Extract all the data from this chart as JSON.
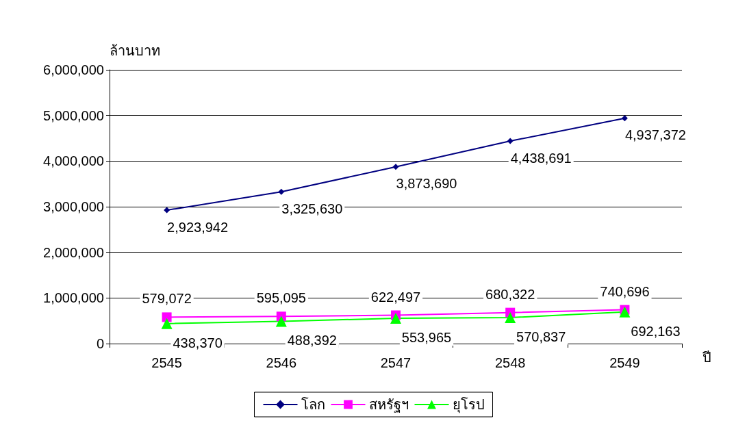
{
  "chart_data": {
    "type": "line",
    "ylabel": "ล้านบาท",
    "xlabel": "ปี",
    "categories": [
      "2545",
      "2546",
      "2547",
      "2548",
      "2549"
    ],
    "ylim": [
      0,
      6000000
    ],
    "yticks": [
      0,
      {
        "value": 1000000,
        "label": "1,000,000"
      },
      {
        "value": 2000000,
        "label": "2,000,000"
      },
      {
        "value": 3000000,
        "label": "3,000,000"
      },
      {
        "value": 4000000,
        "label": "4,000,000"
      },
      {
        "value": 5000000,
        "label": "5,000,000"
      },
      {
        "value": 6000000,
        "label": "6,000,000"
      }
    ],
    "grid": "y",
    "legend": "bottom",
    "series": [
      {
        "name": "โลก",
        "color": "#000080",
        "marker": "diamond",
        "values": [
          2923942,
          3325630,
          3873690,
          4438691,
          4937372
        ],
        "value_labels": [
          "2,923,942",
          "3,325,630",
          "3,873,690",
          "4,438,691",
          "4,937,372"
        ]
      },
      {
        "name": "สหรัฐฯ",
        "color": "#ff00ff",
        "marker": "square",
        "values": [
          579072,
          595095,
          622497,
          680322,
          740696
        ],
        "value_labels": [
          "579,072",
          "595,095",
          "622,497",
          "680,322",
          "740,696"
        ]
      },
      {
        "name": "ยุโรป",
        "color": "#00ff00",
        "marker": "triangle",
        "values": [
          438370,
          488392,
          553965,
          570837,
          692163
        ],
        "value_labels": [
          "438,370",
          "488,392",
          "553,965",
          "570,837",
          "692,163"
        ]
      }
    ]
  }
}
